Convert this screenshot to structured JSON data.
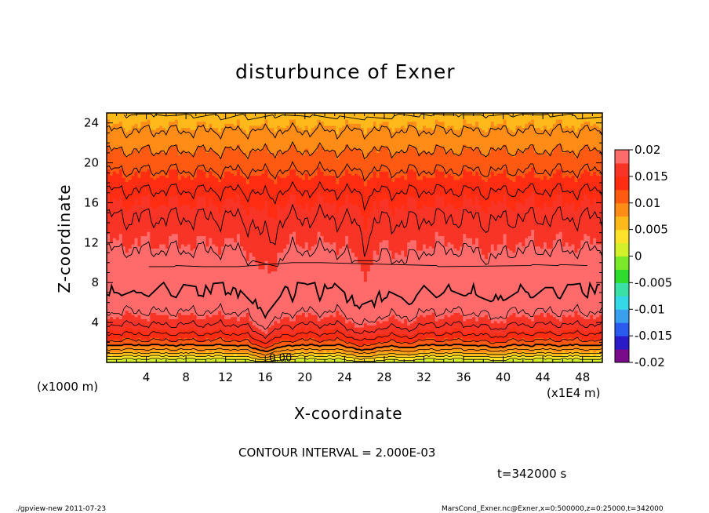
{
  "chart_data": {
    "type": "heatmap",
    "title": "disturbunce of Exner",
    "xlabel": "X-coordinate",
    "ylabel": "Z-coordinate",
    "x_unit": "(x1E4 m)",
    "y_unit": "(x1000 m)",
    "xlim": [
      0,
      50
    ],
    "ylim": [
      0,
      25
    ],
    "x_ticks": [
      4,
      8,
      12,
      16,
      20,
      24,
      28,
      32,
      36,
      40,
      44,
      48
    ],
    "y_ticks": [
      4,
      8,
      12,
      16,
      20,
      24
    ],
    "contour_interval_text": "CONTOUR INTERVAL = 2.000E-03",
    "time_text": "t=342000 s",
    "contour_label": "0.00",
    "colorbar": {
      "range": [
        -0.02,
        0.02
      ],
      "ticks": [
        "0.02",
        "0.015",
        "0.01",
        "0.005",
        "0",
        "-0.005",
        "-0.01",
        "-0.015",
        "-0.02"
      ],
      "colors": [
        "#7a0b8a",
        "#2a1ac8",
        "#2a5aee",
        "#3aa0ee",
        "#34d8e6",
        "#3ae0a6",
        "#2edc2e",
        "#7be82a",
        "#d4f02a",
        "#ffe22a",
        "#ffb91a",
        "#ff8c16",
        "#ff5a12",
        "#ff2d12",
        "#f73426",
        "#ff6a6a"
      ]
    },
    "profile": {
      "z": [
        0,
        1,
        2,
        3,
        4,
        5,
        6,
        7,
        8,
        9,
        10,
        11,
        12,
        13,
        14,
        15,
        16,
        17,
        18,
        19,
        20,
        21,
        22,
        23,
        24,
        25
      ],
      "value": [
        0.0,
        0.0068,
        0.0115,
        0.0145,
        0.0165,
        0.018,
        0.019,
        0.0198,
        0.0201,
        0.0199,
        0.0192,
        0.0182,
        0.0175,
        0.0169,
        0.0163,
        0.0158,
        0.015,
        0.0143,
        0.0133,
        0.0123,
        0.0113,
        0.0103,
        0.0092,
        0.0083,
        0.0072,
        0.0062
      ]
    },
    "dips": [
      {
        "x": 16,
        "depth": 1.0
      },
      {
        "x": 26,
        "depth": 0.85
      },
      {
        "x": 30,
        "depth": 0.35
      },
      {
        "x": 39,
        "depth": 0.3
      }
    ]
  },
  "footer": {
    "left": "./gpview-new   2011-07-23",
    "right": "MarsCond_Exner.nc@Exner,x=0:500000,z=0:25000,t=342000"
  }
}
